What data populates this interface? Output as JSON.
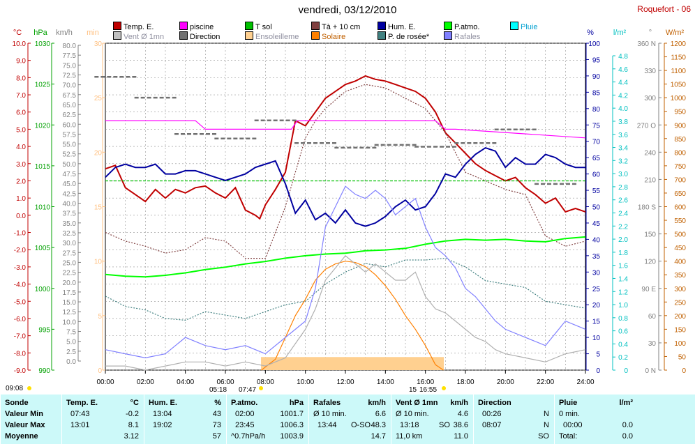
{
  "title": "vendredi, 03/12/2010",
  "station": "Roquefort - 06",
  "legend": [
    {
      "label": "Temp. E.",
      "color": "#c00000"
    },
    {
      "label": "Vent Ø 1mn",
      "color": "#c0c0c0"
    },
    {
      "label": "piscine",
      "color": "#ff00ff"
    },
    {
      "label": "Direction",
      "color": "#707070"
    },
    {
      "label": "T sol",
      "color": "#00c000"
    },
    {
      "label": "Ensoleilleme",
      "color": "#ffd090"
    },
    {
      "label": "Tà + 10 cm",
      "color": "#804040"
    },
    {
      "label": "Solaire",
      "color": "#ff8000"
    },
    {
      "label": "Hum. E.",
      "color": "#0000a0"
    },
    {
      "label": "P. de rosée*",
      "color": "#408080"
    },
    {
      "label": "P.atmo.",
      "color": "#00ff00"
    },
    {
      "label": "Rafales",
      "color": "#8080ff"
    },
    {
      "label": "Pluie",
      "color": "#00ffff"
    }
  ],
  "chart_data": {
    "type": "line",
    "x_ticks": [
      "00:00",
      "02:00",
      "04:00",
      "06:00",
      "08:00",
      "10:00",
      "12:00",
      "14:00",
      "16:00",
      "18:00",
      "20:00",
      "22:00",
      "24:00"
    ],
    "axes": {
      "temp": {
        "unit": "°C",
        "color": "#c00000",
        "ticks": [
          "10.0",
          "9.0",
          "8.0",
          "7.0",
          "6.0",
          "5.0",
          "4.0",
          "3.0",
          "2.0",
          "1.0",
          "0.0",
          "-1.0",
          "-2.0",
          "-3.0",
          "-4.0",
          "-5.0",
          "-6.0",
          "-7.0",
          "-8.0",
          "-9.0"
        ],
        "range": [
          -9,
          10
        ]
      },
      "pressure": {
        "unit": "hPa",
        "color": "#00a000",
        "ticks": [
          "1030",
          "1025",
          "1020",
          "1015",
          "1010",
          "1005",
          "1000",
          "995",
          "990"
        ],
        "range": [
          990,
          1030
        ]
      },
      "wind": {
        "unit": "km/h",
        "color": "#808080",
        "ticks": [
          "80.0",
          "77.5",
          "75.0",
          "72.5",
          "70.0",
          "67.5",
          "65.0",
          "62.5",
          "60.0",
          "57.5",
          "55.0",
          "52.5",
          "50.0",
          "47.5",
          "45.0",
          "42.5",
          "40.0",
          "37.5",
          "35.0",
          "32.5",
          "30.0",
          "27.5",
          "25.0",
          "22.5",
          "20.0",
          "17.5",
          "15.0",
          "12.5",
          "10.0",
          "7.5",
          "5.0",
          "2.5",
          "0.0"
        ],
        "range": [
          0,
          80
        ]
      },
      "sun_min": {
        "unit": "min",
        "color": "#ffc080",
        "ticks": [
          "30",
          "25",
          "20",
          "15",
          "10",
          "5",
          "0"
        ],
        "range": [
          0,
          30
        ]
      },
      "humidity": {
        "unit": "%",
        "color": "#0000a0",
        "ticks": [
          "100",
          "95",
          "90",
          "85",
          "80",
          "75",
          "70",
          "65",
          "60",
          "55",
          "50",
          "45",
          "40",
          "35",
          "30",
          "25",
          "20",
          "15",
          "10",
          "5",
          "0"
        ],
        "range": [
          0,
          100
        ]
      },
      "rain": {
        "unit": "l/m²",
        "color": "#00c0c0",
        "ticks": [
          "4.8",
          "4.6",
          "4.4",
          "4.2",
          "4.0",
          "3.8",
          "3.6",
          "3.4",
          "3.2",
          "3.0",
          "2.8",
          "2.6",
          "2.4",
          "2.2",
          "2.0",
          "1.8",
          "1.6",
          "1.4",
          "1.2",
          "1.0",
          "0.8",
          "0.6",
          "0.4",
          "0.2",
          "0"
        ],
        "range": [
          0,
          5
        ]
      },
      "direction": {
        "unit": "°",
        "color": "#808080",
        "ticks": [
          "360 N",
          "330",
          "300",
          "270 O",
          "240",
          "210",
          "180 S",
          "150",
          "120",
          "90 E",
          "60",
          "30",
          "0 N"
        ],
        "range": [
          0,
          360
        ]
      },
      "solar": {
        "unit": "W/m²",
        "color": "#c06000",
        "ticks": [
          "1200",
          "1150",
          "1100",
          "1050",
          "1000",
          "950",
          "900",
          "850",
          "800",
          "750",
          "700",
          "650",
          "600",
          "550",
          "500",
          "450",
          "400",
          "350",
          "300",
          "250",
          "200",
          "150",
          "100",
          "50",
          "0"
        ],
        "range": [
          0,
          1200
        ]
      }
    },
    "series": [
      {
        "name": "Temp. E.",
        "axis": "temp",
        "color": "#c00000",
        "x": [
          0,
          0.5,
          1,
          1.5,
          2,
          2.5,
          3,
          3.5,
          4,
          4.5,
          5,
          5.5,
          6,
          6.5,
          7,
          7.5,
          7.72,
          8,
          8.5,
          9,
          9.5,
          10,
          10.5,
          11,
          11.5,
          12,
          12.5,
          13,
          13.5,
          14,
          14.5,
          15,
          15.5,
          16,
          16.5,
          17,
          17.5,
          18,
          18.5,
          19,
          19.5,
          20,
          20.5,
          21,
          21.5,
          22,
          22.5,
          23,
          23.5,
          24
        ],
        "y": [
          2.7,
          2.9,
          1.6,
          1.2,
          0.8,
          1.5,
          1.0,
          1.5,
          1.3,
          1.6,
          1.7,
          1.3,
          1.0,
          1.6,
          0.3,
          0.0,
          -0.2,
          0.6,
          1.5,
          2.5,
          5.5,
          5.2,
          6.0,
          6.8,
          7.2,
          7.6,
          7.8,
          8.1,
          7.9,
          7.8,
          7.6,
          7.4,
          7.2,
          6.8,
          6.0,
          4.8,
          4.2,
          3.6,
          3.0,
          2.6,
          2.3,
          2.0,
          2.2,
          1.6,
          1.2,
          0.7,
          1.0,
          0.2,
          0.4,
          0.2
        ]
      },
      {
        "name": "Tà + 10 cm",
        "axis": "temp",
        "color": "#804040",
        "dash": "2,2",
        "x": [
          0,
          1,
          2,
          3,
          4,
          5,
          6,
          7,
          8,
          8.5,
          9,
          9.5,
          10,
          10.5,
          11,
          12,
          13,
          14,
          15,
          16,
          17,
          18,
          19,
          20,
          21,
          22,
          23,
          24
        ],
        "y": [
          -1.0,
          -1.5,
          -1.8,
          -2.2,
          -2.0,
          -1.3,
          -1.5,
          -2.5,
          -2.5,
          -1.0,
          0.5,
          2.5,
          4.5,
          5.5,
          6.2,
          7.2,
          7.6,
          7.4,
          6.8,
          6.2,
          4.8,
          2.5,
          2.0,
          1.5,
          1.2,
          -1.2,
          -1.8,
          -1.5
        ]
      },
      {
        "name": "P. de rosée*",
        "axis": "temp",
        "color": "#408080",
        "dash": "2,2",
        "x": [
          0,
          1,
          2,
          3,
          4,
          5,
          6,
          7,
          8,
          9,
          10,
          11,
          12,
          13,
          14,
          15,
          16,
          17,
          18,
          19,
          20,
          21,
          22,
          23,
          24
        ],
        "y": [
          -4.7,
          -5.3,
          -5.5,
          -6.0,
          -6.1,
          -5.6,
          -5.8,
          -6.0,
          -5.6,
          -5.2,
          -5.0,
          -4.0,
          -3.3,
          -2.8,
          -3.0,
          -2.6,
          -2.6,
          -2.5,
          -3.0,
          -3.8,
          -4.0,
          -4.2,
          -5.0,
          -5.2,
          -5.4
        ]
      },
      {
        "name": "piscine",
        "axis": "temp",
        "color": "#ff00ff",
        "x": [
          0,
          4.5,
          5.0,
          5.5,
          9.3,
          9.6,
          9.9,
          12,
          16.5,
          17.0,
          17.5,
          24
        ],
        "y": [
          5.5,
          5.5,
          5.0,
          5.0,
          5.0,
          5.5,
          5.5,
          5.5,
          5.5,
          5.0,
          5.0,
          4.5
        ]
      },
      {
        "name": "T sol",
        "axis": "temp",
        "color": "#00c000",
        "dash": "4,2",
        "x": [
          0,
          2,
          4,
          6,
          8,
          10,
          12,
          14,
          16,
          17,
          18,
          19,
          20,
          20.5,
          21,
          22,
          23,
          24
        ],
        "y": [
          2.0,
          2.0,
          2.0,
          2.0,
          2.0,
          2.0,
          2.0,
          2.0,
          2.0,
          2.0,
          2.0,
          2.0,
          2.0,
          2.0,
          2.0,
          2.0,
          2.0,
          2.0
        ]
      },
      {
        "name": "Hum. E.",
        "axis": "humidity",
        "color": "#0000a0",
        "x": [
          0,
          0.5,
          1,
          1.5,
          2,
          2.5,
          3,
          3.5,
          4,
          4.5,
          5,
          5.5,
          6,
          6.5,
          7,
          7.5,
          8,
          8.5,
          9,
          9.5,
          10,
          10.5,
          11,
          11.5,
          12,
          12.5,
          13,
          13.5,
          14,
          14.5,
          15,
          15.5,
          16,
          16.5,
          17,
          17.5,
          18,
          18.5,
          19,
          19.5,
          20,
          20.5,
          21,
          21.5,
          22,
          22.5,
          23,
          23.5,
          24
        ],
        "y": [
          59,
          62,
          63,
          62,
          62,
          63,
          60,
          60,
          61,
          61,
          60,
          59,
          58,
          59,
          60,
          62,
          63,
          64,
          57,
          48,
          52,
          46,
          48,
          45,
          49,
          45,
          44,
          45,
          47,
          50,
          52,
          49,
          50,
          54,
          60,
          59,
          63,
          66,
          68,
          67,
          62,
          65,
          63,
          63,
          66,
          65,
          63,
          62,
          62
        ]
      },
      {
        "name": "P.atmo.",
        "axis": "pressure",
        "color": "#00ff00",
        "x": [
          0,
          1,
          2,
          3,
          4,
          5,
          6,
          7,
          8,
          9,
          10,
          11,
          12,
          13,
          14,
          15,
          16,
          17,
          18,
          19,
          20,
          21,
          22,
          23,
          24
        ],
        "y": [
          1001.7,
          1001.5,
          1001.4,
          1001.6,
          1001.9,
          1002.3,
          1002.6,
          1003.0,
          1003.3,
          1003.7,
          1004.0,
          1004.2,
          1004.3,
          1004.6,
          1004.7,
          1004.9,
          1005.4,
          1005.8,
          1006.0,
          1005.9,
          1006.0,
          1005.8,
          1005.7,
          1006.1,
          1006.3
        ]
      },
      {
        "name": "Solaire",
        "axis": "solar",
        "color": "#ff8000",
        "x": [
          7.8,
          8.5,
          9,
          9.5,
          10,
          10.5,
          11,
          11.5,
          12,
          12.5,
          13,
          13.5,
          14,
          14.5,
          15,
          15.5,
          16,
          16.5,
          16.9
        ],
        "y": [
          0,
          40,
          120,
          200,
          260,
          330,
          370,
          390,
          400,
          395,
          380,
          350,
          310,
          260,
          200,
          150,
          90,
          20,
          0
        ]
      },
      {
        "name": "Rafales",
        "axis": "wind",
        "color": "#8080ff",
        "x": [
          0,
          1,
          2,
          3,
          4,
          5,
          6,
          7,
          8,
          9,
          10,
          10.5,
          11,
          11.5,
          12,
          12.5,
          13,
          13.5,
          14,
          14.5,
          15,
          15.5,
          16,
          16.5,
          17,
          17.5,
          18,
          18.5,
          19,
          19.5,
          20,
          21,
          22,
          23,
          24
        ],
        "y": [
          5,
          4,
          3,
          4,
          8,
          6,
          5,
          6,
          4,
          8,
          12,
          20,
          35,
          40,
          45,
          43,
          42,
          44,
          42,
          38,
          40,
          42,
          35,
          30,
          28,
          25,
          20,
          18,
          15,
          12,
          10,
          8,
          6,
          12,
          10
        ]
      },
      {
        "name": "Vent Ø 1mn",
        "axis": "wind",
        "color": "#b0b0b0",
        "x": [
          0,
          1,
          2,
          3,
          4,
          5,
          6,
          7,
          8,
          9,
          10,
          10.5,
          11,
          11.5,
          12,
          12.5,
          13,
          13.5,
          14,
          14.5,
          15,
          15.5,
          16,
          16.5,
          17,
          17.5,
          18,
          18.5,
          19,
          19.5,
          20,
          21,
          22,
          23,
          24
        ],
        "y": [
          1,
          1,
          0,
          1,
          2,
          2,
          1,
          2,
          1,
          3,
          10,
          15,
          22,
          25,
          28,
          26,
          24,
          26,
          24,
          22,
          22,
          24,
          18,
          15,
          14,
          12,
          10,
          8,
          7,
          5,
          4,
          3,
          2,
          4,
          5
        ]
      },
      {
        "name": "Direction",
        "axis": "direction",
        "color": "#707070",
        "x": [
          0.5,
          2.5,
          4.5,
          6.5,
          8.5,
          10.5,
          12.5,
          14.5,
          16.5,
          18.5,
          20.5,
          22.5
        ],
        "y": [
          323,
          300,
          260,
          255,
          275,
          250,
          245,
          248,
          246,
          250,
          265,
          205
        ]
      }
    ],
    "sunshine_bar": {
      "start": 7.78,
      "end": 16.92,
      "value_min": 1.2
    },
    "bottom_markers": {
      "left": "09:08",
      "sunrise": "07:47",
      "sunset": "16:55",
      "labels_extra": [
        "05:18",
        "15"
      ]
    }
  },
  "summary": {
    "headers": [
      {
        "title": "Sonde"
      },
      {
        "title": "Temp. E.",
        "unit": "°C"
      },
      {
        "title": "Hum. E.",
        "unit": "%"
      },
      {
        "title": "P.atmo.",
        "unit": "hPa"
      },
      {
        "title": "Rafales",
        "unit": "km/h"
      },
      {
        "title": "Vent Ø 1mn",
        "unit": "km/h"
      },
      {
        "title": "Direction",
        "unit": ""
      },
      {
        "title": "Pluie",
        "unit": "l/m²"
      }
    ],
    "row_labels": [
      "Valeur Min",
      "Valeur Max",
      "Moyenne"
    ],
    "temp": {
      "min_time": "07:43",
      "min": "-0.2",
      "max_time": "13:01",
      "max": "8.1",
      "avg": "3.12"
    },
    "hum": {
      "min_time": "13:04",
      "min": "43",
      "max_time": "19:02",
      "max": "73",
      "avg": "57"
    },
    "patmo": {
      "min_time": "02:00",
      "min": "1001.7",
      "max_time": "23:45",
      "max": "1006.3",
      "avg_label": "^0.7hPa/h",
      "avg": "1003.9"
    },
    "rafales": {
      "r1_label": "Ø 10 min.",
      "r1": "6.6",
      "r2_time": "13:44",
      "r2_dir": "O-SO",
      "r2": "48.3",
      "avg": "14.7"
    },
    "vent": {
      "r1_label": "Ø 10 min.",
      "r1": "4.6",
      "r2_time": "13:18",
      "r2_dir": "SO",
      "r2": "38.6",
      "r3_label": "11,0 km",
      "avg": "11.0"
    },
    "direction": {
      "r1_time": "00:26",
      "r1": "N",
      "r2_time": "08:07",
      "r2": "N",
      "avg": "SO"
    },
    "pluie": {
      "r1_label": "0 min.",
      "r2_time": "00:00",
      "r2": "0.0",
      "r3_label": "Total:",
      "r3": "0.0"
    }
  }
}
